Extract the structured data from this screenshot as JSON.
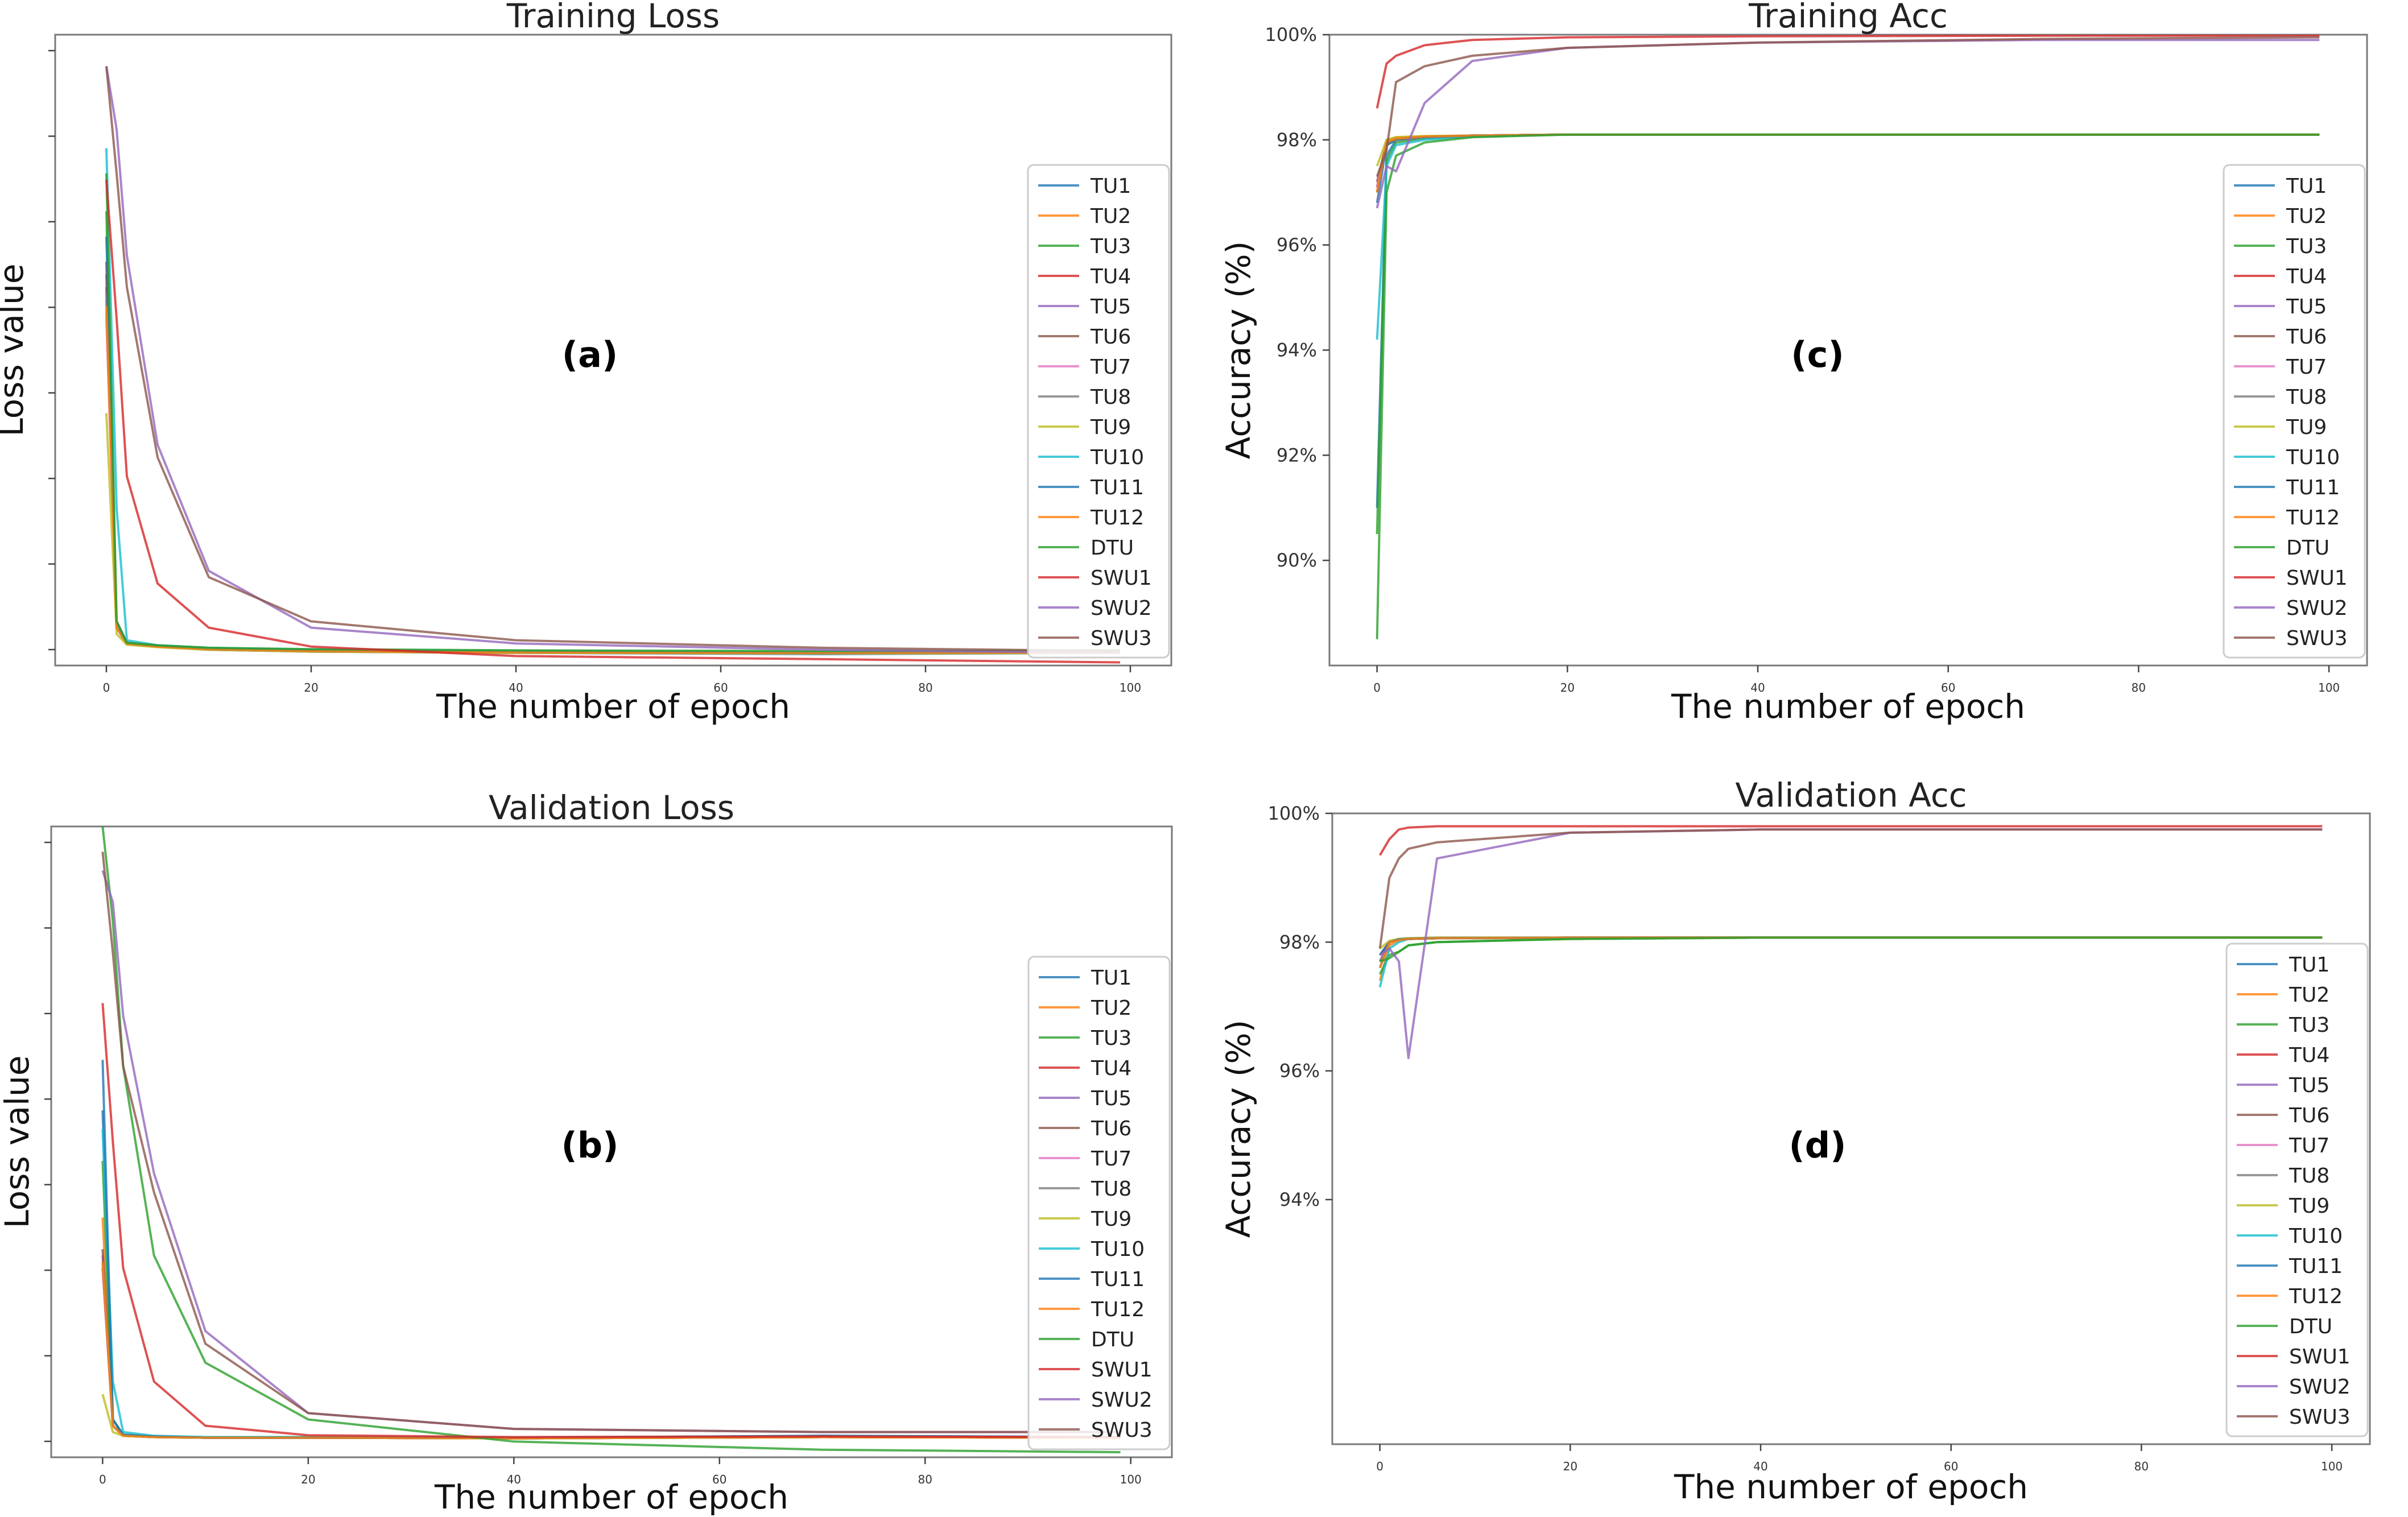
{
  "colors": [
    "#1f77b4",
    "#ff7f0e",
    "#2ca02c",
    "#d62728",
    "#9467bd",
    "#8c564b",
    "#e377c2",
    "#7f7f7f",
    "#bcbd22",
    "#17becf",
    "#1f77b4",
    "#ff7f0e",
    "#2ca02c",
    "#d62728",
    "#9467bd",
    "#8c564b"
  ],
  "chart_data": [
    {
      "id": "a",
      "type": "line",
      "title": "Training Loss",
      "panel_label": "(a)",
      "xlabel": "The number of epoch",
      "ylabel": "Loss value",
      "xlim": [
        -5,
        104
      ],
      "ylim": [
        0,
        1
      ],
      "x_ticks": [
        0,
        20,
        40,
        60,
        80,
        100
      ],
      "x_tick_labels": [
        "0",
        "20",
        "40",
        "60",
        "80",
        "100"
      ],
      "y_tick_labels": [],
      "legend_position": "right",
      "series": [
        {
          "name": "TU1",
          "values": [
            0.6,
            0.06,
            0.035,
            0.03,
            0.025,
            0.022,
            0.02,
            0.018,
            0.02
          ]
        },
        {
          "name": "TU2",
          "values": [
            0.56,
            0.07,
            0.036,
            0.031,
            0.026,
            0.024,
            0.022,
            0.02,
            0.022
          ]
        },
        {
          "name": "TU3",
          "values": [
            0.72,
            0.06,
            0.036,
            0.032,
            0.028,
            0.025,
            0.023,
            0.021,
            0.023
          ]
        },
        {
          "name": "TU4",
          "values": [
            0.64,
            0.06,
            0.035,
            0.03,
            0.026,
            0.023,
            0.021,
            0.02,
            0.021
          ]
        },
        {
          "name": "TU5",
          "values": [
            0.58,
            0.06,
            0.034,
            0.03,
            0.025,
            0.022,
            0.02,
            0.019,
            0.02
          ]
        },
        {
          "name": "TU6",
          "values": [
            0.62,
            0.06,
            0.035,
            0.031,
            0.027,
            0.024,
            0.022,
            0.02,
            0.022
          ]
        },
        {
          "name": "TU7",
          "values": [
            0.55,
            0.06,
            0.034,
            0.03,
            0.026,
            0.023,
            0.021,
            0.02,
            0.021
          ]
        },
        {
          "name": "TU8",
          "values": [
            0.59,
            0.06,
            0.035,
            0.031,
            0.027,
            0.024,
            0.022,
            0.02,
            0.022
          ]
        },
        {
          "name": "TU9",
          "values": [
            0.4,
            0.05,
            0.033,
            0.029,
            0.025,
            0.022,
            0.02,
            0.019,
            0.02
          ]
        },
        {
          "name": "TU10",
          "values": [
            0.82,
            0.25,
            0.04,
            0.032,
            0.028,
            0.025,
            0.023,
            0.021,
            0.023
          ]
        },
        {
          "name": "TU11",
          "values": [
            0.68,
            0.07,
            0.036,
            0.031,
            0.027,
            0.024,
            0.022,
            0.02,
            0.022
          ]
        },
        {
          "name": "TU12",
          "values": [
            0.57,
            0.06,
            0.035,
            0.03,
            0.026,
            0.023,
            0.021,
            0.02,
            0.021
          ]
        },
        {
          "name": "DTU",
          "values": [
            0.78,
            0.07,
            0.036,
            0.032,
            0.028,
            0.026,
            0.024,
            0.023,
            0.024
          ]
        },
        {
          "name": "SWU1",
          "values": [
            0.77,
            0.55,
            0.3,
            0.13,
            0.06,
            0.03,
            0.015,
            0.01,
            0.005
          ]
        },
        {
          "name": "SWU2",
          "values": [
            0.95,
            0.85,
            0.65,
            0.35,
            0.15,
            0.06,
            0.035,
            0.025,
            0.02
          ]
        },
        {
          "name": "SWU3",
          "values": [
            0.95,
            0.78,
            0.6,
            0.33,
            0.14,
            0.07,
            0.04,
            0.028,
            0.023
          ]
        }
      ],
      "x_points": [
        0,
        1,
        2,
        5,
        10,
        20,
        40,
        70,
        99
      ]
    },
    {
      "id": "b",
      "type": "line",
      "title": "Validation Loss",
      "panel_label": "(b)",
      "xlabel": "The number of epoch",
      "ylabel": "Loss value",
      "xlim": [
        -5,
        104
      ],
      "ylim": [
        0,
        1
      ],
      "x_ticks": [
        0,
        20,
        40,
        60,
        80,
        100
      ],
      "x_tick_labels": [
        "0",
        "20",
        "40",
        "60",
        "80",
        "100"
      ],
      "y_tick_labels": [],
      "legend_position": "right",
      "series": [
        {
          "name": "TU1",
          "values": [
            0.55,
            0.06,
            0.035,
            0.033,
            0.031,
            0.032,
            0.031,
            0.034,
            0.032
          ]
        },
        {
          "name": "TU2",
          "values": [
            0.38,
            0.05,
            0.034,
            0.032,
            0.031,
            0.031,
            0.03,
            0.032,
            0.031
          ]
        },
        {
          "name": "TU3",
          "values": [
            0.47,
            0.06,
            0.035,
            0.033,
            0.032,
            0.032,
            0.031,
            0.033,
            0.032
          ]
        },
        {
          "name": "TU4",
          "values": [
            0.3,
            0.05,
            0.034,
            0.032,
            0.031,
            0.031,
            0.03,
            0.032,
            0.031
          ]
        },
        {
          "name": "TU5",
          "values": [
            0.32,
            0.05,
            0.034,
            0.032,
            0.031,
            0.031,
            0.03,
            0.032,
            0.031
          ]
        },
        {
          "name": "TU6",
          "values": [
            0.33,
            0.05,
            0.034,
            0.032,
            0.031,
            0.031,
            0.03,
            0.032,
            0.031
          ]
        },
        {
          "name": "TU7",
          "values": [
            0.3,
            0.05,
            0.034,
            0.032,
            0.031,
            0.031,
            0.03,
            0.032,
            0.031
          ]
        },
        {
          "name": "TU8",
          "values": [
            0.31,
            0.05,
            0.034,
            0.032,
            0.031,
            0.031,
            0.03,
            0.032,
            0.031
          ]
        },
        {
          "name": "TU9",
          "values": [
            0.1,
            0.04,
            0.034,
            0.032,
            0.031,
            0.031,
            0.03,
            0.032,
            0.031
          ]
        },
        {
          "name": "TU10",
          "values": [
            0.52,
            0.12,
            0.04,
            0.034,
            0.032,
            0.032,
            0.031,
            0.033,
            0.032
          ]
        },
        {
          "name": "TU11",
          "values": [
            0.63,
            0.06,
            0.036,
            0.033,
            0.031,
            0.031,
            0.031,
            0.034,
            0.032
          ]
        },
        {
          "name": "TU12",
          "values": [
            0.31,
            0.05,
            0.034,
            0.032,
            0.031,
            0.031,
            0.03,
            0.032,
            0.031
          ]
        },
        {
          "name": "DTU",
          "values": [
            1.0,
            0.85,
            0.62,
            0.32,
            0.15,
            0.06,
            0.025,
            0.012,
            0.008
          ]
        },
        {
          "name": "SWU1",
          "values": [
            0.72,
            0.5,
            0.3,
            0.12,
            0.05,
            0.035,
            0.032,
            0.033,
            0.032
          ]
        },
        {
          "name": "SWU2",
          "values": [
            0.93,
            0.88,
            0.7,
            0.45,
            0.2,
            0.07,
            0.045,
            0.04,
            0.04
          ]
        },
        {
          "name": "SWU3",
          "values": [
            0.96,
            0.8,
            0.62,
            0.42,
            0.18,
            0.07,
            0.045,
            0.04,
            0.04
          ]
        }
      ],
      "x_points": [
        0,
        1,
        2,
        5,
        10,
        20,
        40,
        70,
        99
      ]
    },
    {
      "id": "c",
      "type": "line",
      "title": "Training Acc",
      "panel_label": "(c)",
      "xlabel": "The number of epoch",
      "ylabel": "Accuracy (%)",
      "xlim": [
        -5,
        104
      ],
      "ylim": [
        88,
        100
      ],
      "x_ticks": [
        0,
        20,
        40,
        60,
        80,
        100
      ],
      "x_tick_labels": [
        "0",
        "20",
        "40",
        "60",
        "80",
        "100"
      ],
      "y_ticks": [
        90,
        92,
        94,
        96,
        98,
        100
      ],
      "y_tick_labels": [
        "90%",
        "92%",
        "94%",
        "96%",
        "98%",
        "100%"
      ],
      "legend_position": "right",
      "series": [
        {
          "name": "TU1",
          "values": [
            91.0,
            97.7,
            98.0,
            98.05,
            98.08,
            98.1,
            98.1,
            98.1,
            98.1
          ]
        },
        {
          "name": "TU2",
          "values": [
            97.0,
            98.0,
            98.05,
            98.07,
            98.08,
            98.1,
            98.1,
            98.1,
            98.1
          ]
        },
        {
          "name": "TU3",
          "values": [
            90.5,
            97.6,
            97.95,
            98.03,
            98.07,
            98.1,
            98.1,
            98.1,
            98.1
          ]
        },
        {
          "name": "TU4",
          "values": [
            97.1,
            97.95,
            98.03,
            98.06,
            98.08,
            98.1,
            98.1,
            98.1,
            98.1
          ]
        },
        {
          "name": "TU5",
          "values": [
            97.0,
            97.9,
            98.0,
            98.05,
            98.08,
            98.1,
            98.1,
            98.1,
            98.1
          ]
        },
        {
          "name": "TU6",
          "values": [
            97.2,
            97.95,
            98.02,
            98.06,
            98.08,
            98.1,
            98.1,
            98.1,
            98.1
          ]
        },
        {
          "name": "TU7",
          "values": [
            97.1,
            97.9,
            98.0,
            98.05,
            98.08,
            98.1,
            98.1,
            98.1,
            98.1
          ]
        },
        {
          "name": "TU8",
          "values": [
            97.0,
            97.9,
            98.0,
            98.05,
            98.08,
            98.1,
            98.1,
            98.1,
            98.1
          ]
        },
        {
          "name": "TU9",
          "values": [
            97.5,
            98.0,
            98.05,
            98.07,
            98.08,
            98.1,
            98.1,
            98.1,
            98.1
          ]
        },
        {
          "name": "TU10",
          "values": [
            94.2,
            97.5,
            97.9,
            98.0,
            98.06,
            98.1,
            98.1,
            98.1,
            98.1
          ]
        },
        {
          "name": "TU11",
          "values": [
            96.8,
            97.9,
            98.0,
            98.05,
            98.08,
            98.1,
            98.1,
            98.1,
            98.1
          ]
        },
        {
          "name": "TU12",
          "values": [
            97.0,
            97.95,
            98.02,
            98.06,
            98.08,
            98.1,
            98.1,
            98.1,
            98.1
          ]
        },
        {
          "name": "DTU",
          "values": [
            88.5,
            97.0,
            97.7,
            97.95,
            98.05,
            98.1,
            98.1,
            98.1,
            98.1
          ]
        },
        {
          "name": "SWU1",
          "values": [
            98.6,
            99.45,
            99.6,
            99.8,
            99.9,
            99.95,
            99.97,
            99.98,
            99.98
          ]
        },
        {
          "name": "SWU2",
          "values": [
            96.7,
            97.5,
            97.4,
            98.7,
            99.5,
            99.75,
            99.85,
            99.9,
            99.9
          ]
        },
        {
          "name": "SWU3",
          "values": [
            97.3,
            97.8,
            99.1,
            99.4,
            99.6,
            99.75,
            99.85,
            99.92,
            99.95
          ]
        }
      ],
      "x_points": [
        0,
        1,
        2,
        5,
        10,
        20,
        40,
        70,
        99
      ]
    },
    {
      "id": "d",
      "type": "line",
      "title": "Validation Acc",
      "panel_label": "(d)",
      "xlabel": "The number of epoch",
      "ylabel": "Accuracy (%)",
      "xlim": [
        -5,
        104
      ],
      "ylim": [
        90.2,
        100
      ],
      "x_ticks": [
        0,
        20,
        40,
        60,
        80,
        100
      ],
      "x_tick_labels": [
        "0",
        "20",
        "40",
        "60",
        "80",
        "100"
      ],
      "y_ticks": [
        94,
        96,
        98,
        100
      ],
      "y_tick_labels": [
        "94%",
        "96%",
        "98%",
        "100%"
      ],
      "legend_position": "right",
      "series": [
        {
          "name": "TU1",
          "values": [
            97.6,
            98.0,
            98.05,
            98.06,
            98.07,
            98.07,
            98.07,
            98.07,
            98.07
          ]
        },
        {
          "name": "TU2",
          "values": [
            97.4,
            97.95,
            98.03,
            98.05,
            98.06,
            98.07,
            98.07,
            98.07,
            98.07
          ]
        },
        {
          "name": "TU3",
          "values": [
            97.5,
            97.8,
            97.85,
            97.95,
            98.0,
            98.05,
            98.07,
            98.07,
            98.07
          ]
        },
        {
          "name": "TU4",
          "values": [
            97.8,
            98.0,
            98.04,
            98.05,
            98.06,
            98.07,
            98.07,
            98.07,
            98.07
          ]
        },
        {
          "name": "TU5",
          "values": [
            97.7,
            98.0,
            98.04,
            98.05,
            98.06,
            98.07,
            98.07,
            98.07,
            98.07
          ]
        },
        {
          "name": "TU6",
          "values": [
            97.8,
            98.0,
            98.04,
            98.05,
            98.06,
            98.07,
            98.07,
            98.07,
            98.07
          ]
        },
        {
          "name": "TU7",
          "values": [
            97.7,
            98.0,
            98.04,
            98.05,
            98.06,
            98.07,
            98.07,
            98.07,
            98.07
          ]
        },
        {
          "name": "TU8",
          "values": [
            97.7,
            98.0,
            98.04,
            98.05,
            98.06,
            98.07,
            98.07,
            98.07,
            98.07
          ]
        },
        {
          "name": "TU9",
          "values": [
            97.9,
            98.02,
            98.05,
            98.06,
            98.07,
            98.07,
            98.07,
            98.07,
            98.07
          ]
        },
        {
          "name": "TU10",
          "values": [
            97.3,
            97.9,
            98.0,
            98.05,
            98.06,
            98.07,
            98.07,
            98.07,
            98.07
          ]
        },
        {
          "name": "TU11",
          "values": [
            97.8,
            98.0,
            98.04,
            98.05,
            98.06,
            98.07,
            98.07,
            98.07,
            98.07
          ]
        },
        {
          "name": "TU12",
          "values": [
            97.6,
            98.0,
            98.03,
            98.05,
            98.06,
            98.07,
            98.07,
            98.07,
            98.07
          ]
        },
        {
          "name": "DTU",
          "values": [
            97.7,
            97.75,
            97.85,
            97.95,
            98.0,
            98.05,
            98.07,
            98.07,
            98.07
          ]
        },
        {
          "name": "SWU1",
          "values": [
            99.35,
            99.6,
            99.75,
            99.78,
            99.8,
            99.8,
            99.8,
            99.8,
            99.8
          ]
        },
        {
          "name": "SWU2",
          "values": [
            97.8,
            97.9,
            97.7,
            96.2,
            99.3,
            99.7,
            99.75,
            99.75,
            99.75
          ]
        },
        {
          "name": "SWU3",
          "values": [
            97.9,
            99.0,
            99.3,
            99.45,
            99.55,
            99.7,
            99.75,
            99.75,
            99.75
          ]
        }
      ],
      "x_points": [
        0,
        1,
        2,
        3,
        6,
        20,
        40,
        70,
        99
      ]
    }
  ]
}
